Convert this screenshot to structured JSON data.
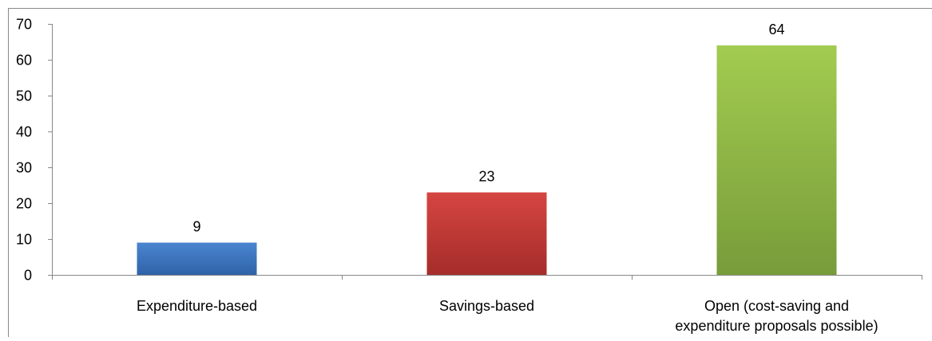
{
  "chart_data": {
    "type": "bar",
    "categories": [
      "Expenditure-based",
      "Savings-based",
      "Open (cost-saving and expenditure proposals possible)"
    ],
    "category_lines": [
      [
        "Expenditure-based"
      ],
      [
        "Savings-based"
      ],
      [
        "Open (cost-saving and",
        "expenditure proposals possible)"
      ]
    ],
    "values": [
      9,
      23,
      64
    ],
    "data_labels": [
      "9",
      "23",
      "64"
    ],
    "colors": [
      {
        "top": "#4a86d0",
        "bottom": "#2f62a8"
      },
      {
        "top": "#d64541",
        "bottom": "#a52d2a"
      },
      {
        "top": "#a2cc50",
        "bottom": "#779c3a"
      }
    ],
    "title": "",
    "xlabel": "",
    "ylabel": "",
    "ylim": [
      0,
      70
    ],
    "yticks": [
      0,
      10,
      20,
      30,
      40,
      50,
      60,
      70
    ],
    "ytick_labels": [
      "0",
      "10",
      "20",
      "30",
      "40",
      "50",
      "60",
      "70"
    ],
    "grid": false,
    "legend": "none"
  }
}
